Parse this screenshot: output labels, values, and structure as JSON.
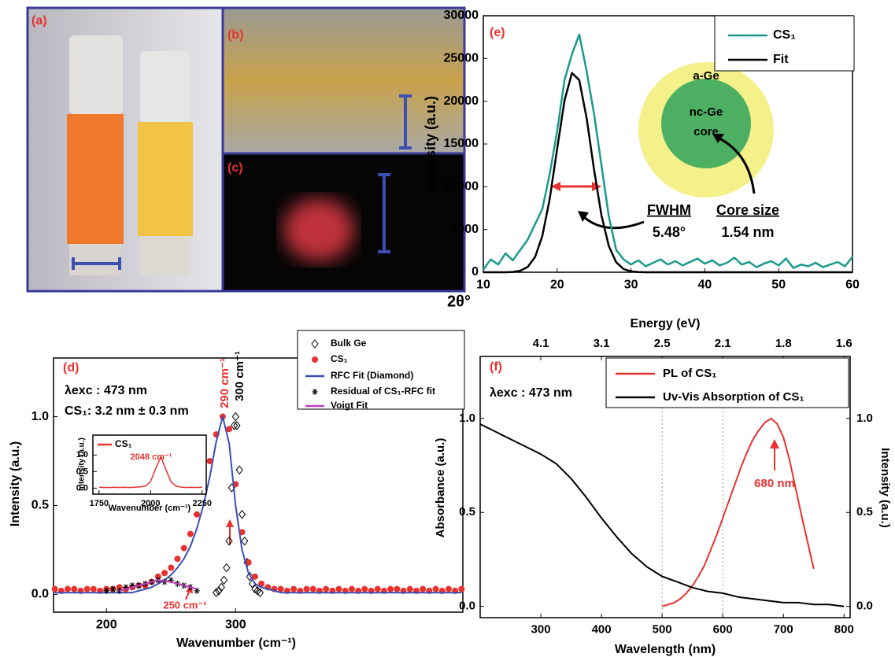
{
  "photo_panels": {
    "labels": [
      "(a)",
      "(b)",
      "(c)"
    ]
  },
  "chart_data": [
    {
      "type": "line",
      "panel_label": "(e)",
      "x_label": "2θ°",
      "y_label": "Intensity (a.u.)",
      "xlim": [
        10,
        60
      ],
      "ylim": [
        0,
        30000
      ],
      "xticks": [
        10,
        20,
        30,
        40,
        50,
        60
      ],
      "yticks": [
        0,
        5000,
        10000,
        15000,
        20000,
        25000,
        30000
      ],
      "legend": "upper right",
      "x": [
        10,
        11,
        12,
        13,
        14,
        15,
        16,
        17,
        18,
        19,
        20,
        21,
        22,
        23,
        24,
        25,
        26,
        27,
        28,
        29,
        30,
        31,
        32,
        33,
        34,
        35,
        36,
        37,
        38,
        39,
        40,
        41,
        42,
        43,
        44,
        45,
        46,
        47,
        48,
        49,
        50,
        51,
        52,
        53,
        54,
        55,
        56,
        57,
        58,
        59,
        60
      ],
      "series": [
        {
          "name": "CS₁",
          "color": "#1a9a8c",
          "values": [
            300,
            1500,
            900,
            2200,
            1400,
            2600,
            3800,
            5600,
            7400,
            11500,
            16500,
            22500,
            25500,
            27800,
            23500,
            18500,
            12500,
            6500,
            2600,
            1500,
            900,
            1400,
            700,
            1100,
            1500,
            900,
            1300,
            800,
            1200,
            1600,
            1000,
            1400,
            800,
            1100,
            1700,
            900,
            1200,
            600,
            1000,
            1300,
            800,
            1600,
            500,
            900,
            700,
            1100,
            600,
            900,
            1200,
            700,
            1800
          ]
        },
        {
          "name": "Fit",
          "color": "#000000",
          "values": [
            0,
            0,
            0,
            0,
            41,
            172,
            604,
            1763,
            4250,
            8600,
            14430,
            20110,
            23300,
            22470,
            18000,
            11990,
            6640,
            3050,
            1170,
            373,
            99,
            22,
            0,
            0,
            0,
            0,
            0,
            0,
            0,
            0,
            0,
            0,
            0,
            0,
            0,
            0,
            0,
            0,
            0,
            0,
            0,
            0,
            0,
            0,
            0,
            0,
            0,
            0,
            0,
            0,
            0
          ]
        }
      ],
      "annotations": [
        "a-Ge",
        "nc-Ge",
        "core",
        "FWHM",
        "5.48°",
        "Core size",
        "1.54 nm"
      ]
    },
    {
      "type": "line",
      "panel_label": "(d)",
      "x_label": "Wavenumber (cm⁻¹)",
      "y_label": "Intensity (a.u.)",
      "xlim": [
        159,
        476
      ],
      "ylim": [
        -0.1,
        1.33
      ],
      "xticks": [
        200,
        300
      ],
      "yticks": [
        {
          "value": 0,
          "label": "0.0"
        },
        {
          "value": 0.5,
          "label": "0.5"
        },
        {
          "value": 1,
          "label": "1.0"
        }
      ],
      "legend": "upper right",
      "x": [
        160,
        165,
        170,
        175,
        180,
        185,
        190,
        195,
        200,
        205,
        210,
        215,
        220,
        225,
        230,
        235,
        240,
        245,
        250,
        255,
        260,
        265,
        270,
        275,
        280,
        285,
        290,
        295,
        300,
        305,
        310,
        315,
        320,
        325,
        330,
        335,
        340,
        345,
        350,
        355,
        360,
        365,
        370,
        375,
        380,
        385,
        390,
        395,
        400,
        405,
        410,
        415,
        420,
        425,
        430,
        435,
        440,
        445,
        450,
        455,
        460,
        465,
        470,
        475
      ],
      "series": [
        {
          "name": "Bulk Ge",
          "color": "#000000",
          "marker": "diamond",
          "x": [
            285,
            287,
            289,
            291,
            293,
            295,
            297,
            299,
            300,
            301,
            303,
            305,
            307,
            309,
            311,
            313,
            315,
            317,
            319
          ],
          "values": [
            0.01,
            0.02,
            0.04,
            0.08,
            0.15,
            0.3,
            0.6,
            0.95,
            1.0,
            0.95,
            0.7,
            0.45,
            0.3,
            0.18,
            0.1,
            0.06,
            0.03,
            0.02,
            0.01
          ]
        },
        {
          "name": "CS₁",
          "color": "#e8322f",
          "marker": "circle",
          "values": [
            0.03,
            0.02,
            0.03,
            0.03,
            0.02,
            0.03,
            0.03,
            0.02,
            0.03,
            0.03,
            0.04,
            0.03,
            0.04,
            0.05,
            0.05,
            0.07,
            0.1,
            0.12,
            0.15,
            0.2,
            0.26,
            0.34,
            0.45,
            0.6,
            0.75,
            0.9,
            1.0,
            0.93,
            0.62,
            0.35,
            0.18,
            0.1,
            0.06,
            0.04,
            0.03,
            0.03,
            0.02,
            0.03,
            0.02,
            0.03,
            0.03,
            0.02,
            0.03,
            0.02,
            0.03,
            0.02,
            0.03,
            0.02,
            0.03,
            0.02,
            0.03,
            0.02,
            0.03,
            0.03,
            0.02,
            0.03,
            0.02,
            0.03,
            0.02,
            0.03,
            0.02,
            0.03,
            0.02,
            0.03
          ]
        },
        {
          "name": "RFC Fit (Diamond)",
          "color": "#3a4fb5",
          "values": [
            0.01,
            0.01,
            0.01,
            0.01,
            0.01,
            0.01,
            0.01,
            0.01,
            0.01,
            0.01,
            0.01,
            0.01,
            0.01,
            0.02,
            0.03,
            0.04,
            0.06,
            0.08,
            0.11,
            0.15,
            0.2,
            0.27,
            0.37,
            0.5,
            0.66,
            0.86,
            1.0,
            0.85,
            0.5,
            0.25,
            0.12,
            0.06,
            0.04,
            0.03,
            0.02,
            0.01,
            0.01,
            0.01,
            0.01,
            0.01,
            0.01,
            0.01,
            0.01,
            0.01,
            0.01,
            0.01,
            0.01,
            0.01,
            0.01,
            0.01,
            0.01,
            0.01,
            0.01,
            0.01,
            0.01,
            0.01,
            0.01,
            0.01,
            0.01,
            0.01,
            0.01,
            0.01,
            0.01,
            0.01
          ]
        },
        {
          "name": "Residual of CS₁-RFC fit",
          "color": "#000000",
          "marker": "star",
          "x": [
            200,
            205,
            210,
            215,
            220,
            225,
            230,
            235,
            240,
            245,
            250,
            255,
            260,
            265,
            270
          ],
          "values": [
            0.02,
            0.03,
            0.02,
            0.04,
            0.05,
            0.05,
            0.06,
            0.07,
            0.08,
            0.07,
            0.08,
            0.06,
            0.05,
            0.04,
            0.02
          ]
        },
        {
          "name": "Voigt  Fit",
          "color": "#c040c0",
          "x": [
            210,
            215,
            220,
            225,
            230,
            235,
            240,
            245,
            250,
            255,
            260,
            265,
            270
          ],
          "values": [
            0.02,
            0.03,
            0.04,
            0.05,
            0.06,
            0.07,
            0.08,
            0.075,
            0.07,
            0.06,
            0.05,
            0.04,
            0.03
          ]
        }
      ],
      "annotations": [
        "λexc : 473 nm",
        "CS₁: 3.2 nm ± 0.3 nm",
        "290 cm⁻¹",
        "300 cm⁻¹",
        "250 cm⁻¹"
      ]
    },
    {
      "type": "line",
      "x_label": "Wavenumber (cm⁻¹)",
      "y_label": "Intensity (a.u.)",
      "xlim": [
        1720,
        2270
      ],
      "ylim": [
        -0.18,
        1.6
      ],
      "xticks": [
        1750,
        2000,
        2250
      ],
      "yticks": [
        {
          "value": 0,
          "label": "0.0"
        },
        {
          "value": 0.5,
          "label": "0.5"
        },
        {
          "value": 1,
          "label": "1.0"
        }
      ],
      "legend": "upper left",
      "x": [
        1750,
        1775,
        1800,
        1825,
        1850,
        1875,
        1900,
        1925,
        1950,
        1975,
        2000,
        2025,
        2050,
        2075,
        2100,
        2125,
        2150,
        2175,
        2200,
        2225,
        2250
      ],
      "series": [
        {
          "name": "CS₁",
          "color": "#e8322f",
          "values": [
            0.03,
            0.02,
            0.02,
            0.03,
            0.02,
            0.03,
            0.02,
            0.03,
            0.04,
            0.06,
            0.2,
            0.6,
            0.95,
            0.55,
            0.18,
            0.06,
            0.03,
            0.02,
            0.03,
            0.02,
            0.03
          ]
        }
      ],
      "annotations": [
        "2048 cm⁻¹"
      ]
    },
    {
      "type": "line",
      "panel_label": "(f)",
      "x_label": "Wavelength (nm)",
      "x2_label": "Energy (eV)",
      "y_label": "Absorbance (a.u.)",
      "y2_label": "Intensity (a.u.)",
      "xlim": [
        200,
        810
      ],
      "ylim": [
        -0.06,
        1.33
      ],
      "y2lim": [
        -0.06,
        1.33
      ],
      "xticks": [
        300,
        400,
        500,
        600,
        700,
        800
      ],
      "x2ticks": [
        {
          "value": 300,
          "label": "4.1"
        },
        {
          "value": 400,
          "label": "3.1"
        },
        {
          "value": 500,
          "label": "2.5"
        },
        {
          "value": 600,
          "label": "2.1"
        },
        {
          "value": 700,
          "label": "1.8"
        },
        {
          "value": 800,
          "label": "1.6"
        }
      ],
      "yticks": [
        {
          "value": 0,
          "label": "0.0"
        },
        {
          "value": 0.5,
          "label": "0.5"
        },
        {
          "value": 1,
          "label": "1.0"
        }
      ],
      "y2ticks": [
        {
          "value": 0,
          "label": "0.0"
        },
        {
          "value": 0.5,
          "label": "0.5"
        },
        {
          "value": 1,
          "label": "1.0"
        }
      ],
      "reference_lines": [
        500,
        600
      ],
      "legend": "upper right",
      "series": [
        {
          "name": "PL of CS₁",
          "color": "#e8322f",
          "axis": "y2",
          "x": [
            500,
            510,
            520,
            530,
            540,
            550,
            560,
            570,
            580,
            590,
            600,
            610,
            620,
            630,
            640,
            650,
            660,
            670,
            680,
            690,
            700,
            710,
            720,
            730,
            740,
            750
          ],
          "values": [
            0.0,
            0.01,
            0.02,
            0.04,
            0.07,
            0.11,
            0.16,
            0.22,
            0.3,
            0.38,
            0.47,
            0.56,
            0.65,
            0.74,
            0.82,
            0.89,
            0.94,
            0.98,
            1.0,
            0.97,
            0.9,
            0.78,
            0.63,
            0.48,
            0.34,
            0.2
          ]
        },
        {
          "name": "Uv-Vis Absorption of CS₁",
          "color": "#000000",
          "x": [
            200,
            225,
            250,
            275,
            300,
            325,
            350,
            375,
            400,
            425,
            450,
            475,
            500,
            525,
            550,
            575,
            600,
            625,
            650,
            675,
            700,
            725,
            750,
            775,
            800
          ],
          "values": [
            0.97,
            0.93,
            0.89,
            0.85,
            0.81,
            0.76,
            0.68,
            0.58,
            0.47,
            0.37,
            0.28,
            0.21,
            0.16,
            0.13,
            0.1,
            0.08,
            0.07,
            0.05,
            0.04,
            0.03,
            0.02,
            0.02,
            0.01,
            0.01,
            0.0
          ]
        }
      ],
      "annotations": [
        "λexc : 473 nm",
        "680 nm"
      ]
    }
  ]
}
